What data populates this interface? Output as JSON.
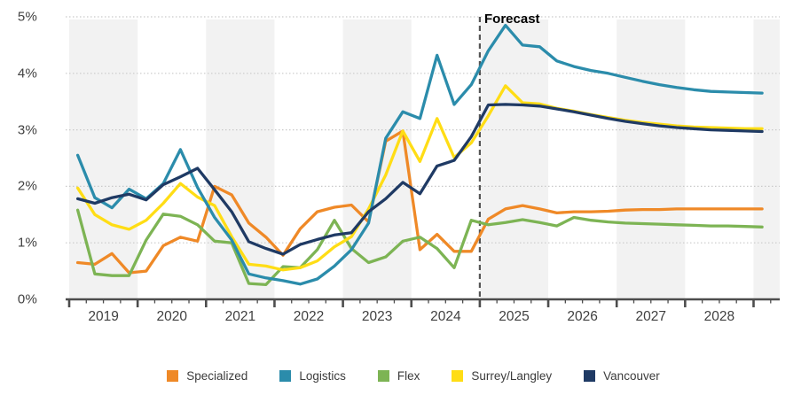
{
  "chart": {
    "forecast_label": "Forecast",
    "y_ticks": [
      "0%",
      "1%",
      "2%",
      "3%",
      "4%",
      "5%"
    ],
    "years": [
      "2019",
      "2020",
      "2021",
      "2022",
      "2023",
      "2024",
      "2025",
      "2026",
      "2027",
      "2028"
    ]
  },
  "legend": {
    "items": [
      {
        "label": "Specialized",
        "color": "#EF8927"
      },
      {
        "label": "Logistics",
        "color": "#2B8CAB"
      },
      {
        "label": "Flex",
        "color": "#7DB454"
      },
      {
        "label": "Surrey/Langley",
        "color": "#FFDD15"
      },
      {
        "label": "Vancouver",
        "color": "#1F3A64"
      }
    ]
  },
  "colors": {
    "band_gray": "#F2F2F2",
    "gridline": "#C9C9C9",
    "axis": "#4D4D4D",
    "forecast_line": "#555555",
    "tick_text": "#404040"
  },
  "chart_data": {
    "type": "line",
    "title": "",
    "xlabel": "",
    "ylabel": "",
    "y_unit": "%",
    "ylim": [
      0,
      5
    ],
    "grid": "horizontal-dotted",
    "legend_position": "bottom",
    "forecast_divider_at": "2025 Q1",
    "annotation": "Forecast",
    "x": [
      "2019 Q1",
      "2019 Q2",
      "2019 Q3",
      "2019 Q4",
      "2020 Q1",
      "2020 Q2",
      "2020 Q3",
      "2020 Q4",
      "2021 Q1",
      "2021 Q2",
      "2021 Q3",
      "2021 Q4",
      "2022 Q1",
      "2022 Q2",
      "2022 Q3",
      "2022 Q4",
      "2023 Q1",
      "2023 Q2",
      "2023 Q3",
      "2023 Q4",
      "2024 Q1",
      "2024 Q2",
      "2024 Q3",
      "2024 Q4",
      "2025 Q1",
      "2025 Q2",
      "2025 Q3",
      "2025 Q4",
      "2026 Q1",
      "2026 Q2",
      "2026 Q3",
      "2026 Q4",
      "2027 Q1",
      "2027 Q2",
      "2027 Q3",
      "2027 Q4",
      "2028 Q1",
      "2028 Q2",
      "2028 Q3",
      "2028 Q4",
      "2029 Q1"
    ],
    "series": [
      {
        "name": "Specialized",
        "color": "#EF8927",
        "values": [
          0.65,
          0.62,
          0.81,
          0.47,
          0.5,
          0.95,
          1.1,
          1.03,
          2.0,
          1.85,
          1.35,
          1.1,
          0.78,
          1.25,
          1.55,
          1.63,
          1.67,
          1.37,
          2.8,
          2.98,
          0.88,
          1.15,
          0.85,
          0.85,
          1.42,
          1.6,
          1.66,
          1.6,
          1.53,
          1.55,
          1.55,
          1.56,
          1.58,
          1.59,
          1.59,
          1.6,
          1.6,
          1.6,
          1.6,
          1.6,
          1.6
        ]
      },
      {
        "name": "Flex",
        "color": "#7DB454",
        "values": [
          1.58,
          0.45,
          0.42,
          0.42,
          1.05,
          1.51,
          1.47,
          1.32,
          1.03,
          1.0,
          0.28,
          0.26,
          0.58,
          0.56,
          0.88,
          1.4,
          0.9,
          0.65,
          0.75,
          1.03,
          1.1,
          0.9,
          0.56,
          1.4,
          1.32,
          1.36,
          1.41,
          1.36,
          1.3,
          1.45,
          1.4,
          1.37,
          1.35,
          1.34,
          1.33,
          1.32,
          1.31,
          1.3,
          1.3,
          1.29,
          1.28
        ]
      },
      {
        "name": "Surrey/Langley",
        "color": "#FFDD15",
        "values": [
          1.97,
          1.5,
          1.32,
          1.24,
          1.4,
          1.7,
          2.05,
          1.81,
          1.66,
          1.11,
          0.62,
          0.59,
          0.52,
          0.56,
          0.68,
          0.93,
          1.11,
          1.6,
          2.2,
          2.98,
          2.44,
          3.2,
          2.51,
          2.77,
          3.25,
          3.78,
          3.48,
          3.46,
          3.38,
          3.33,
          3.27,
          3.22,
          3.17,
          3.13,
          3.1,
          3.07,
          3.05,
          3.04,
          3.03,
          3.02,
          3.02
        ]
      },
      {
        "name": "Logistics",
        "color": "#2B8CAB",
        "values": [
          2.55,
          1.8,
          1.62,
          1.95,
          1.78,
          2.05,
          2.65,
          1.98,
          1.45,
          1.05,
          0.45,
          0.38,
          0.33,
          0.27,
          0.36,
          0.59,
          0.88,
          1.35,
          2.85,
          3.32,
          3.2,
          4.32,
          3.45,
          3.8,
          4.4,
          4.85,
          4.5,
          4.47,
          4.22,
          4.12,
          4.05,
          4.0,
          3.93,
          3.86,
          3.8,
          3.75,
          3.71,
          3.68,
          3.67,
          3.66,
          3.65
        ]
      },
      {
        "name": "Vancouver",
        "color": "#1F3A64",
        "values": [
          1.78,
          1.7,
          1.8,
          1.86,
          1.76,
          2.03,
          2.17,
          2.32,
          1.94,
          1.55,
          1.02,
          0.9,
          0.8,
          0.97,
          1.06,
          1.14,
          1.18,
          1.55,
          1.78,
          2.07,
          1.87,
          2.36,
          2.46,
          2.88,
          3.44,
          3.45,
          3.44,
          3.42,
          3.37,
          3.32,
          3.26,
          3.2,
          3.15,
          3.11,
          3.07,
          3.04,
          3.02,
          3.0,
          2.99,
          2.98,
          2.97
        ]
      }
    ]
  }
}
